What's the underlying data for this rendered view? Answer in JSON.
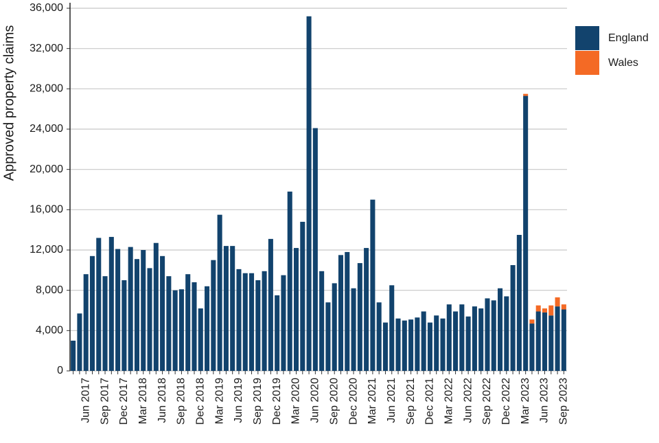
{
  "chart_data": {
    "type": "stacked-bar",
    "y_label": "Approved property claims",
    "categories": [
      null,
      null,
      "Jun 2017",
      null,
      null,
      "Sep 2017",
      null,
      null,
      "Dec 2017",
      null,
      null,
      "Mar 2018",
      null,
      null,
      "Jun 2018",
      null,
      null,
      "Sep 2018",
      null,
      null,
      "Dec 2018",
      null,
      null,
      "Mar 2019",
      null,
      null,
      "Jun 2019",
      null,
      null,
      "Sep 2019",
      null,
      null,
      "Dec 2019",
      null,
      null,
      "Mar 2020",
      null,
      null,
      "Jun 2020",
      null,
      null,
      "Sep 2020",
      null,
      null,
      "Dec 2020",
      null,
      null,
      "Mar 2021",
      null,
      null,
      "Jun 2021",
      null,
      null,
      "Sep 2021",
      null,
      null,
      "Dec 2021",
      null,
      null,
      "Mar 2022",
      null,
      null,
      "Jun 2022",
      null,
      null,
      "Sep 2022",
      null,
      null,
      "Dec 2022",
      null,
      null,
      "Mar 2023",
      null,
      null,
      "Jun 2023",
      null,
      null,
      "Sep 2023"
    ],
    "series": [
      {
        "name": "England",
        "color": "#12436d",
        "values": [
          3000,
          5700,
          9600,
          11400,
          13200,
          9400,
          13300,
          12100,
          9000,
          12300,
          11100,
          12000,
          10200,
          12700,
          11400,
          9400,
          8000,
          8100,
          9600,
          8800,
          6200,
          8400,
          11000,
          15500,
          12400,
          12400,
          10100,
          9700,
          9700,
          9000,
          9900,
          13100,
          7500,
          9500,
          17800,
          12200,
          14800,
          35200,
          24100,
          9900,
          6800,
          8700,
          11500,
          11800,
          8200,
          10700,
          12200,
          17000,
          6800,
          4800,
          8500,
          5200,
          5000,
          5100,
          5300,
          5900,
          4800,
          5500,
          5200,
          6600,
          5900,
          6600,
          5400,
          6400,
          6200,
          7200,
          7000,
          8200,
          7400,
          10500,
          13500,
          27300,
          4700,
          5900,
          5800,
          5500,
          6400,
          6100
        ]
      },
      {
        "name": "Wales",
        "color": "#f46a25",
        "values": [
          null,
          null,
          null,
          null,
          null,
          null,
          null,
          null,
          null,
          null,
          null,
          null,
          null,
          null,
          null,
          null,
          null,
          null,
          null,
          null,
          null,
          null,
          null,
          null,
          null,
          null,
          null,
          null,
          null,
          null,
          null,
          null,
          null,
          null,
          null,
          null,
          null,
          null,
          null,
          null,
          null,
          null,
          null,
          null,
          null,
          null,
          null,
          null,
          null,
          null,
          null,
          null,
          null,
          null,
          null,
          null,
          null,
          null,
          null,
          null,
          null,
          null,
          null,
          null,
          null,
          null,
          null,
          null,
          null,
          null,
          null,
          200,
          400,
          600,
          400,
          1000,
          900,
          500
        ]
      }
    ],
    "ylim": [
      0,
      36000
    ],
    "yticks": [
      0,
      {
        "value": 4000,
        "label": "4,000"
      },
      {
        "value": 8000,
        "label": "8,000"
      },
      {
        "value": 12000,
        "label": "12,000"
      },
      {
        "value": 16000,
        "label": "16,000"
      },
      {
        "value": 20000,
        "label": "20,000"
      },
      {
        "value": 24000,
        "label": "24,000"
      },
      {
        "value": 28000,
        "label": "28,000"
      },
      {
        "value": 32000,
        "label": "32,000"
      },
      {
        "value": 36000,
        "label": "36,000"
      }
    ],
    "grid": true,
    "legend": "top-right"
  }
}
